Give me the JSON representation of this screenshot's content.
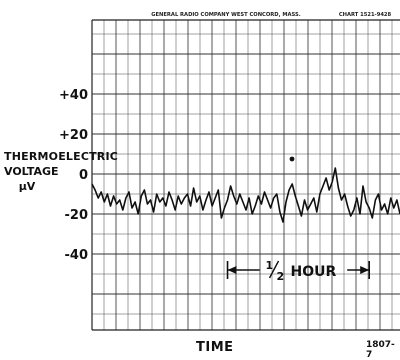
{
  "header": {
    "maker": "GENERAL RADIO COMPANY WEST CONCORD, MASS.",
    "chart_id": "CHART 1521-9428"
  },
  "figure_number": "1807-7",
  "chart_data": {
    "type": "line",
    "xlabel": "TIME",
    "ylabel": [
      "THERMOELECTRIC",
      "VOLTAGE",
      "μV"
    ],
    "yticks": [
      "+40",
      "+20",
      "0",
      "-20",
      "-40"
    ],
    "ytick_values": [
      40,
      20,
      0,
      -20,
      -40
    ],
    "ylim": [
      -80,
      80
    ],
    "xlim": [
      0,
      100
    ],
    "grid": true,
    "annotation": {
      "text": "½ HOUR",
      "text_main": "1",
      "text_den": "2",
      "text_word": "HOUR",
      "span_x": [
        44,
        90
      ],
      "y": -48
    },
    "series": [
      {
        "x": [
          0,
          1,
          2,
          3,
          4,
          5,
          6,
          7,
          8,
          9,
          10,
          11,
          12,
          13,
          14,
          15,
          16,
          17,
          18,
          19,
          20,
          21,
          22,
          23,
          24,
          25,
          26,
          27,
          28,
          29,
          30,
          31,
          32,
          33,
          34,
          35,
          36,
          37,
          38,
          39,
          40,
          41,
          42,
          43,
          44,
          45,
          46,
          47,
          48,
          49,
          50,
          51,
          52,
          53,
          54,
          55,
          56,
          57,
          58,
          59,
          60,
          61,
          62,
          63,
          64,
          65,
          66,
          67,
          68,
          69,
          70,
          71,
          72,
          73,
          74,
          75,
          76,
          77,
          78,
          79,
          80,
          81,
          82,
          83,
          84,
          85,
          86,
          87,
          88,
          89,
          90,
          91,
          92,
          93,
          94,
          95,
          96,
          97,
          98,
          99,
          100
        ],
        "y": [
          -5,
          -8,
          -12,
          -9,
          -14,
          -10,
          -16,
          -11,
          -15,
          -13,
          -18,
          -12,
          -9,
          -17,
          -14,
          -20,
          -11,
          -8,
          -15,
          -13,
          -19,
          -10,
          -14,
          -12,
          -16,
          -9,
          -13,
          -18,
          -11,
          -15,
          -12,
          -10,
          -16,
          -7,
          -14,
          -11,
          -18,
          -13,
          -9,
          -16,
          -12,
          -8,
          -22,
          -17,
          -13,
          -6,
          -11,
          -15,
          -10,
          -14,
          -18,
          -12,
          -20,
          -16,
          -11,
          -15,
          -9,
          -13,
          -17,
          -12,
          -10,
          -19,
          -24,
          -14,
          -8,
          -5,
          -11,
          -16,
          -21,
          -13,
          -18,
          -15,
          -12,
          -19,
          -10,
          -6,
          -2,
          -8,
          -4,
          3,
          -7,
          -13,
          -10,
          -16,
          -21,
          -18,
          -12,
          -20,
          -6,
          -14,
          -17,
          -22,
          -13,
          -10,
          -18,
          -15,
          -20,
          -12,
          -17,
          -13,
          -20
        ]
      }
    ]
  }
}
